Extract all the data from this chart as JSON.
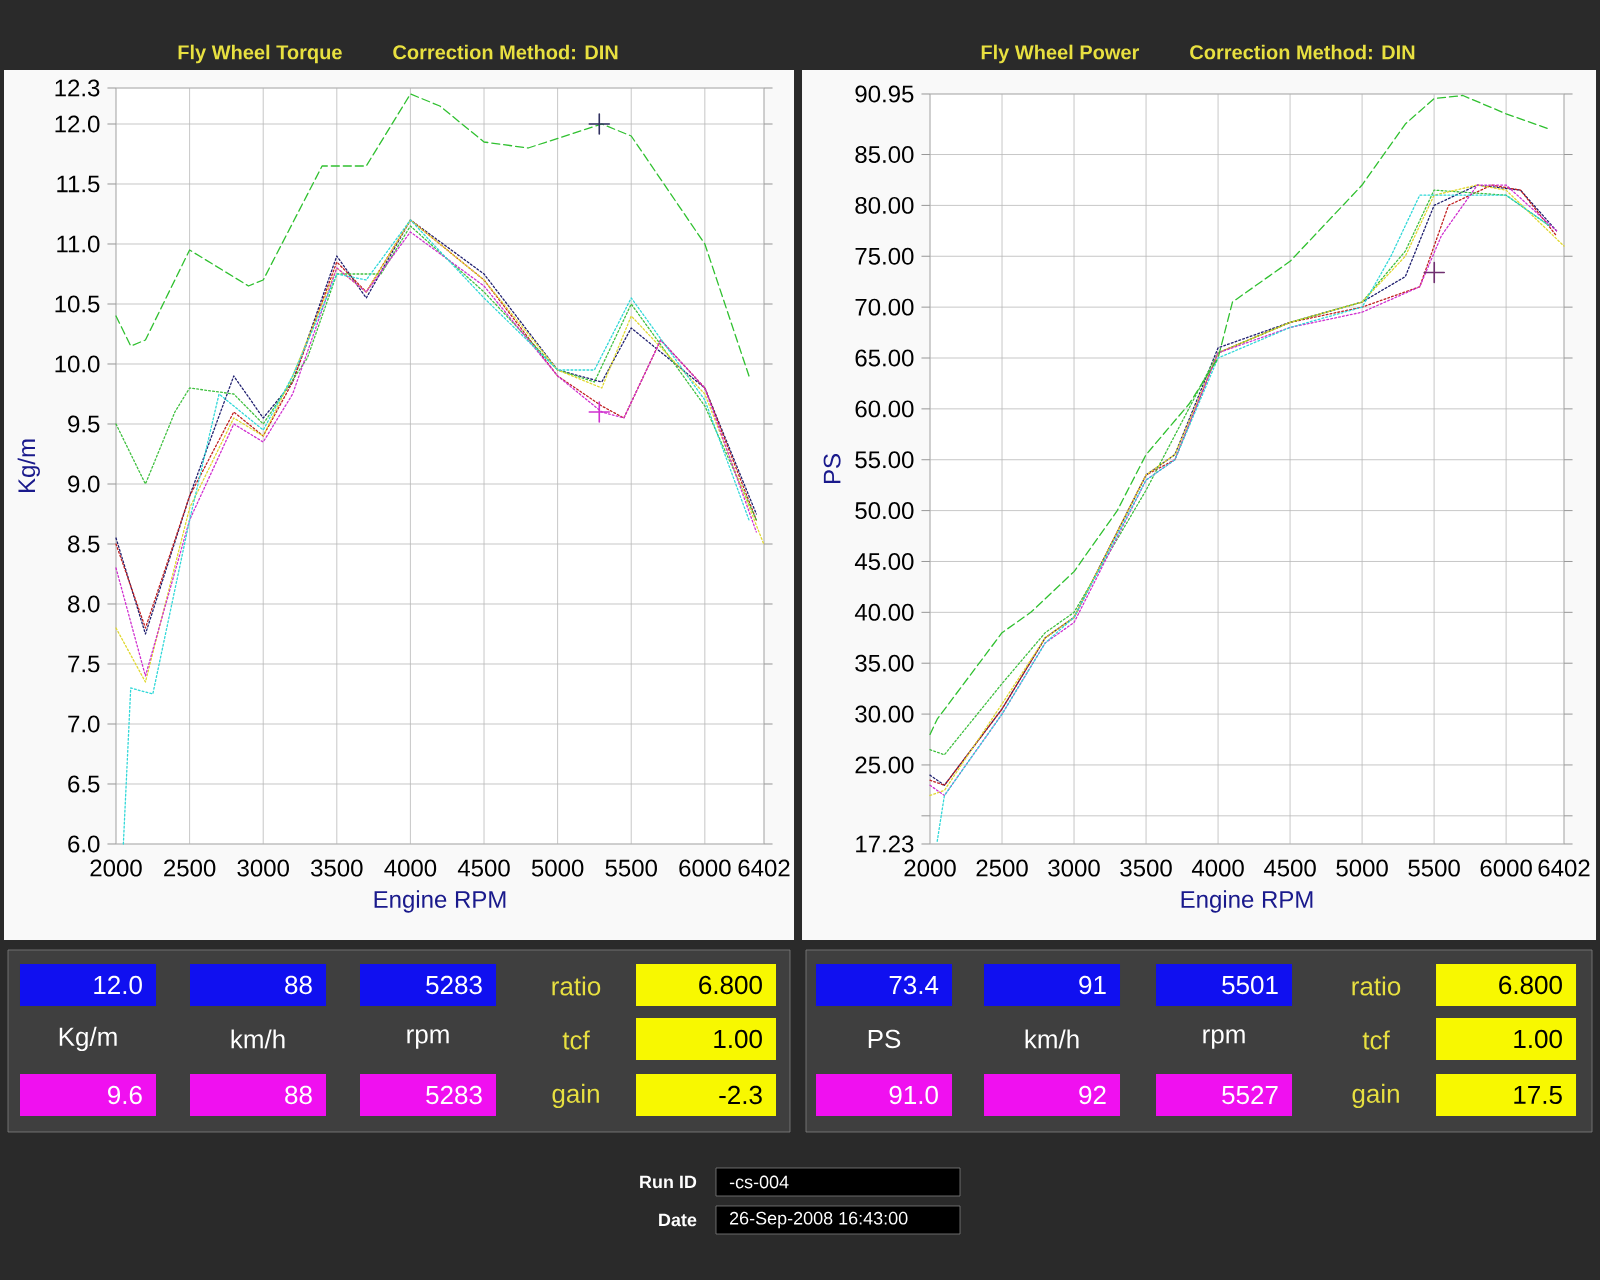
{
  "chart_data": [
    {
      "type": "line",
      "title": "Fly Wheel Torque",
      "subtitle": "Correction Method: DIN",
      "xlabel": "Engine RPM",
      "ylabel": "Kg/m",
      "xlim": [
        2000,
        6402
      ],
      "ylim": [
        6.0,
        12.3
      ],
      "xticks": [
        2000,
        2500,
        3000,
        3500,
        4000,
        4500,
        5000,
        5500,
        6000,
        6402
      ],
      "yticks": [
        {
          "value": 6.0,
          "label": "6.0"
        },
        {
          "value": 6.5,
          "label": "6.5"
        },
        {
          "value": 7.0,
          "label": "7.0"
        },
        {
          "value": 7.5,
          "label": "7.5"
        },
        {
          "value": 8.0,
          "label": "8.0"
        },
        {
          "value": 8.5,
          "label": "8.5"
        },
        {
          "value": 9.0,
          "label": "9.0"
        },
        {
          "value": 9.5,
          "label": "9.5"
        },
        {
          "value": 10.0,
          "label": "10.0"
        },
        {
          "value": 10.5,
          "label": "10.5"
        },
        {
          "value": 11.0,
          "label": "11.0"
        },
        {
          "value": 11.5,
          "label": "11.5"
        },
        {
          "value": 12.0,
          "label": "12.0"
        },
        12.3
      ],
      "grid": true,
      "series": [
        {
          "color": "#30c030",
          "line_style": "dashed",
          "x": [
            2000,
            2100,
            2200,
            2500,
            2900,
            3000,
            3400,
            3700,
            4000,
            4200,
            4500,
            4800,
            5300,
            5500,
            6000,
            6300
          ],
          "values": [
            10.4,
            10.15,
            10.2,
            10.95,
            10.65,
            10.7,
            11.65,
            11.65,
            12.25,
            12.15,
            11.85,
            11.8,
            12.0,
            11.9,
            11.0,
            9.9
          ]
        },
        {
          "color": "#30d8d8",
          "line_style": "dotted",
          "x": [
            2050,
            2100,
            2250,
            2500,
            2700,
            3000,
            3200,
            3500,
            3700,
            4000,
            4500,
            5000,
            5250,
            5500,
            6000,
            6300
          ],
          "values": [
            6.0,
            7.3,
            7.25,
            8.7,
            9.75,
            9.45,
            9.9,
            10.75,
            10.7,
            11.2,
            10.55,
            9.95,
            9.95,
            10.55,
            9.7,
            8.7
          ]
        },
        {
          "color": "#d030d0",
          "line_style": "dotted",
          "x": [
            2000,
            2200,
            2500,
            2800,
            3000,
            3200,
            3500,
            3700,
            4000,
            4500,
            5000,
            5300,
            5450,
            5700,
            6000,
            6350
          ],
          "values": [
            8.3,
            7.4,
            8.7,
            9.5,
            9.35,
            9.75,
            10.8,
            10.6,
            11.1,
            10.65,
            9.9,
            9.6,
            9.55,
            10.2,
            9.8,
            8.6
          ]
        },
        {
          "color": "#e0d830",
          "line_style": "dotted",
          "x": [
            2000,
            2200,
            2500,
            2800,
            3000,
            3200,
            3500,
            3700,
            4000,
            4500,
            5000,
            5300,
            5500,
            6000,
            6400
          ],
          "values": [
            7.8,
            7.35,
            8.8,
            9.55,
            9.4,
            9.9,
            10.8,
            10.6,
            11.2,
            10.7,
            9.95,
            9.8,
            10.4,
            9.75,
            8.5
          ]
        },
        {
          "color": "#40c040",
          "line_style": "dotted",
          "x": [
            2000,
            2200,
            2400,
            2500,
            2800,
            3000,
            3300,
            3500,
            3800,
            4000,
            4500,
            5000,
            5250,
            5500,
            6000,
            6350
          ],
          "values": [
            9.5,
            9.0,
            9.6,
            9.8,
            9.75,
            9.5,
            10.05,
            10.75,
            10.75,
            11.15,
            10.6,
            9.95,
            9.85,
            10.5,
            9.65,
            8.7
          ]
        },
        {
          "color": "#c02020",
          "line_style": "dotted",
          "x": [
            2000,
            2200,
            2500,
            2800,
            3000,
            3200,
            3500,
            3700,
            4000,
            4500,
            5000,
            5300,
            5450,
            5700,
            6000,
            6350
          ],
          "values": [
            8.5,
            7.8,
            8.9,
            9.6,
            9.4,
            9.85,
            10.85,
            10.6,
            11.2,
            10.7,
            9.9,
            9.65,
            9.55,
            10.2,
            9.8,
            8.7
          ]
        },
        {
          "color": "#202070",
          "line_style": "dotted",
          "x": [
            2000,
            2200,
            2500,
            2800,
            3000,
            3200,
            3500,
            3700,
            4000,
            4500,
            5000,
            5300,
            5500,
            6000,
            6350
          ],
          "values": [
            8.55,
            7.75,
            8.9,
            9.9,
            9.55,
            9.85,
            10.9,
            10.55,
            11.2,
            10.75,
            9.95,
            9.85,
            10.3,
            9.8,
            8.75
          ]
        },
        {
          "type": "scatter",
          "marker": "cross",
          "color": "#303060",
          "x": [
            5283
          ],
          "values": [
            12.0
          ]
        },
        {
          "type": "scatter",
          "marker": "cross",
          "color": "#d030d0",
          "x": [
            5283
          ],
          "values": [
            9.6
          ]
        }
      ],
      "annotations": [
        "12.0",
        "88",
        "5283",
        "ratio",
        "6.800",
        "Kg/m",
        "km/h",
        "rpm",
        "tcf",
        "1.00",
        "9.6",
        "88",
        "5283",
        "gain",
        "-2.3"
      ]
    },
    {
      "type": "line",
      "title": "Fly Wheel Power",
      "subtitle": "Correction Method: DIN",
      "xlabel": "Engine RPM",
      "ylabel": "PS",
      "xlim": [
        2000,
        6402
      ],
      "ylim": [
        17.23,
        90.95
      ],
      "xticks": [
        2000,
        2500,
        3000,
        3500,
        4000,
        4500,
        5000,
        5500,
        6000,
        6402
      ],
      "yticks": [
        17.23,
        {
          "value": 20,
          "label": null
        },
        {
          "value": 25,
          "label": "25.00"
        },
        {
          "value": 30,
          "label": "30.00"
        },
        {
          "value": 35,
          "label": "35.00"
        },
        {
          "value": 40,
          "label": "40.00"
        },
        {
          "value": 45,
          "label": "45.00"
        },
        {
          "value": 50,
          "label": "50.00"
        },
        {
          "value": 55,
          "label": "55.00"
        },
        {
          "value": 60,
          "label": "60.00"
        },
        {
          "value": 65,
          "label": "65.00"
        },
        {
          "value": 70,
          "label": "70.00"
        },
        {
          "value": 75,
          "label": "75.00"
        },
        {
          "value": 80,
          "label": "80.00"
        },
        {
          "value": 85,
          "label": "85.00"
        },
        90.95
      ],
      "grid": true,
      "series": [
        {
          "color": "#30c030",
          "line_style": "dashed",
          "x": [
            2000,
            2050,
            2500,
            2700,
            3000,
            3300,
            3500,
            3800,
            4000,
            4100,
            4500,
            5000,
            5300,
            5500,
            5700,
            6000,
            6300
          ],
          "values": [
            28,
            29.5,
            38,
            40,
            44,
            50,
            55.5,
            60.5,
            65,
            70.5,
            74.5,
            82,
            88,
            90.5,
            90.8,
            89,
            87.5
          ]
        },
        {
          "color": "#30d8d8",
          "line_style": "dotted",
          "x": [
            2050,
            2100,
            2500,
            2800,
            3000,
            3500,
            3700,
            4000,
            4500,
            5000,
            5200,
            5400,
            5600,
            6000,
            6300
          ],
          "values": [
            17.5,
            22,
            30,
            37,
            39.5,
            53,
            55,
            65,
            68,
            70,
            75,
            81,
            81,
            81,
            78
          ]
        },
        {
          "color": "#d030d0",
          "line_style": "dotted",
          "x": [
            2000,
            2100,
            2500,
            2800,
            3000,
            3500,
            3700,
            4000,
            4500,
            5000,
            5400,
            5550,
            5800,
            6000,
            6350
          ],
          "values": [
            23,
            22,
            30,
            37,
            39,
            53,
            55,
            65.5,
            68,
            69.5,
            72,
            77,
            82,
            82,
            77.5
          ]
        },
        {
          "color": "#e0d830",
          "line_style": "dotted",
          "x": [
            2000,
            2100,
            2500,
            2800,
            3000,
            3500,
            3700,
            4000,
            4500,
            5000,
            5300,
            5500,
            5800,
            6000,
            6402
          ],
          "values": [
            22,
            22.5,
            31,
            37.5,
            39.5,
            53.5,
            55.5,
            65.5,
            68.5,
            70.5,
            75,
            81,
            82,
            81.5,
            76
          ]
        },
        {
          "color": "#40c040",
          "line_style": "dotted",
          "x": [
            2000,
            2100,
            2500,
            2800,
            3000,
            3500,
            4000,
            4500,
            5000,
            5300,
            5500,
            6000,
            6300
          ],
          "values": [
            26.5,
            26,
            33,
            38,
            40,
            52,
            65.5,
            68.5,
            70.5,
            75.5,
            81.5,
            81,
            78
          ]
        },
        {
          "color": "#c02020",
          "line_style": "dotted",
          "x": [
            2000,
            2100,
            2500,
            2800,
            3000,
            3500,
            3700,
            4000,
            4500,
            5000,
            5400,
            5600,
            5900,
            6100,
            6350
          ],
          "values": [
            23.5,
            23,
            30.5,
            37.5,
            39.5,
            53.5,
            55,
            65.5,
            68.5,
            70,
            72,
            80,
            82,
            81.5,
            77
          ]
        },
        {
          "color": "#202070",
          "line_style": "dotted",
          "x": [
            2000,
            2100,
            2500,
            2800,
            3000,
            3500,
            3700,
            4000,
            4500,
            5000,
            5300,
            5500,
            5800,
            6100,
            6350
          ],
          "values": [
            24,
            23,
            30.5,
            37.5,
            39.5,
            53.5,
            55.5,
            66,
            68.5,
            70.5,
            73,
            80,
            82,
            81.5,
            77.5
          ]
        },
        {
          "type": "scatter",
          "marker": "cross",
          "color": "#703070",
          "x": [
            5501
          ],
          "values": [
            73.4
          ]
        }
      ],
      "annotations": [
        "73.4",
        "91",
        "5501",
        "ratio",
        "6.800",
        "PS",
        "km/h",
        "rpm",
        "tcf",
        "1.00",
        "91.0",
        "92",
        "5527",
        "gain",
        "17.5",
        "Run ID",
        "-cs-004",
        "Date",
        "26-Sep-2008  16:43:00"
      ]
    }
  ]
}
